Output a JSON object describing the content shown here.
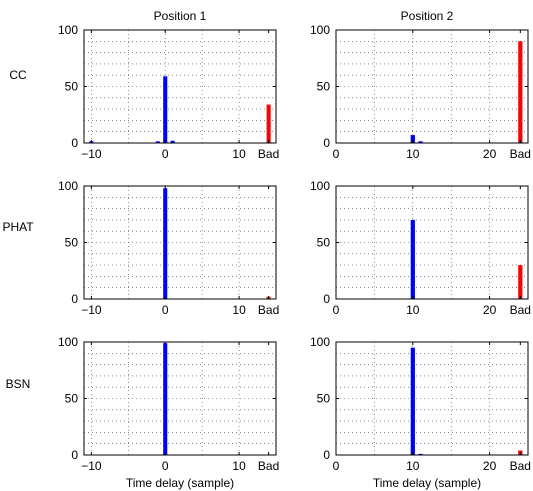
{
  "figure": {
    "column_titles": [
      "Position 1",
      "Position 2"
    ],
    "row_labels": [
      "CC",
      "PHAT",
      "BSN"
    ],
    "xlabel": "Time delay (sample)"
  },
  "chart_data": [
    {
      "type": "bar",
      "row_label": "CC",
      "column_title": "Position 1",
      "xlim": [
        -11,
        15
      ],
      "ylim": [
        0,
        100
      ],
      "xticks": [
        {
          "value": -10,
          "label": "−10"
        },
        {
          "value": 0,
          "label": "0"
        },
        {
          "value": 10,
          "label": "10"
        },
        {
          "value": 14,
          "label": "Bad"
        }
      ],
      "yticks": [
        {
          "value": 0,
          "label": "0"
        },
        {
          "value": 50,
          "label": "50"
        },
        {
          "value": 100,
          "label": "100"
        }
      ],
      "grid": true,
      "bars": [
        {
          "x": -10,
          "value": 1.5,
          "color": "#0000ff"
        },
        {
          "x": -1,
          "value": 1.5,
          "color": "#0000ff"
        },
        {
          "x": 0,
          "value": 59,
          "color": "#0000ff"
        },
        {
          "x": 1,
          "value": 2,
          "color": "#0000ff"
        },
        {
          "x": 14,
          "value": 34,
          "color": "#ff0000"
        }
      ]
    },
    {
      "type": "bar",
      "row_label": "CC",
      "column_title": "Position 2",
      "xlim": [
        0,
        25
      ],
      "ylim": [
        0,
        100
      ],
      "xticks": [
        {
          "value": 0,
          "label": "0"
        },
        {
          "value": 10,
          "label": "10"
        },
        {
          "value": 20,
          "label": "20"
        },
        {
          "value": 24,
          "label": "Bad"
        }
      ],
      "yticks": [
        {
          "value": 0,
          "label": "0"
        },
        {
          "value": 50,
          "label": "50"
        },
        {
          "value": 100,
          "label": "100"
        }
      ],
      "grid": true,
      "bars": [
        {
          "x": 10,
          "value": 7,
          "color": "#0000ff"
        },
        {
          "x": 11,
          "value": 1.5,
          "color": "#0000ff"
        },
        {
          "x": 24,
          "value": 90,
          "color": "#ff0000"
        }
      ]
    },
    {
      "type": "bar",
      "row_label": "PHAT",
      "column_title": "Position 1",
      "xlim": [
        -11,
        15
      ],
      "ylim": [
        0,
        100
      ],
      "xticks": [
        {
          "value": -10,
          "label": "−10"
        },
        {
          "value": 0,
          "label": "0"
        },
        {
          "value": 10,
          "label": "10"
        },
        {
          "value": 14,
          "label": "Bad"
        }
      ],
      "yticks": [
        {
          "value": 0,
          "label": "0"
        },
        {
          "value": 50,
          "label": "50"
        },
        {
          "value": 100,
          "label": "100"
        }
      ],
      "grid": true,
      "bars": [
        {
          "x": 0,
          "value": 98,
          "color": "#0000ff"
        },
        {
          "x": 14,
          "value": 2,
          "color": "#ff0000"
        }
      ]
    },
    {
      "type": "bar",
      "row_label": "PHAT",
      "column_title": "Position 2",
      "xlim": [
        0,
        25
      ],
      "ylim": [
        0,
        100
      ],
      "xticks": [
        {
          "value": 0,
          "label": "0"
        },
        {
          "value": 10,
          "label": "10"
        },
        {
          "value": 20,
          "label": "20"
        },
        {
          "value": 24,
          "label": "Bad"
        }
      ],
      "yticks": [
        {
          "value": 0,
          "label": "0"
        },
        {
          "value": 50,
          "label": "50"
        },
        {
          "value": 100,
          "label": "100"
        }
      ],
      "grid": true,
      "bars": [
        {
          "x": 10,
          "value": 70,
          "color": "#0000ff"
        },
        {
          "x": 24,
          "value": 30,
          "color": "#ff0000"
        }
      ]
    },
    {
      "type": "bar",
      "row_label": "BSN",
      "column_title": "Position 1",
      "xlim": [
        -11,
        15
      ],
      "ylim": [
        0,
        100
      ],
      "xticks": [
        {
          "value": -10,
          "label": "−10"
        },
        {
          "value": 0,
          "label": "0"
        },
        {
          "value": 10,
          "label": "10"
        },
        {
          "value": 14,
          "label": "Bad"
        }
      ],
      "yticks": [
        {
          "value": 0,
          "label": "0"
        },
        {
          "value": 50,
          "label": "50"
        },
        {
          "value": 100,
          "label": "100"
        }
      ],
      "grid": true,
      "bars": [
        {
          "x": 0,
          "value": 99,
          "color": "#0000ff"
        }
      ]
    },
    {
      "type": "bar",
      "row_label": "BSN",
      "column_title": "Position 2",
      "xlim": [
        0,
        25
      ],
      "ylim": [
        0,
        100
      ],
      "xticks": [
        {
          "value": 0,
          "label": "0"
        },
        {
          "value": 10,
          "label": "10"
        },
        {
          "value": 20,
          "label": "20"
        },
        {
          "value": 24,
          "label": "Bad"
        }
      ],
      "yticks": [
        {
          "value": 0,
          "label": "0"
        },
        {
          "value": 50,
          "label": "50"
        },
        {
          "value": 100,
          "label": "100"
        }
      ],
      "grid": true,
      "bars": [
        {
          "x": 10,
          "value": 95,
          "color": "#0000ff"
        },
        {
          "x": 11,
          "value": 1,
          "color": "#0000ff"
        },
        {
          "x": 24,
          "value": 4,
          "color": "#ff0000"
        }
      ]
    }
  ]
}
